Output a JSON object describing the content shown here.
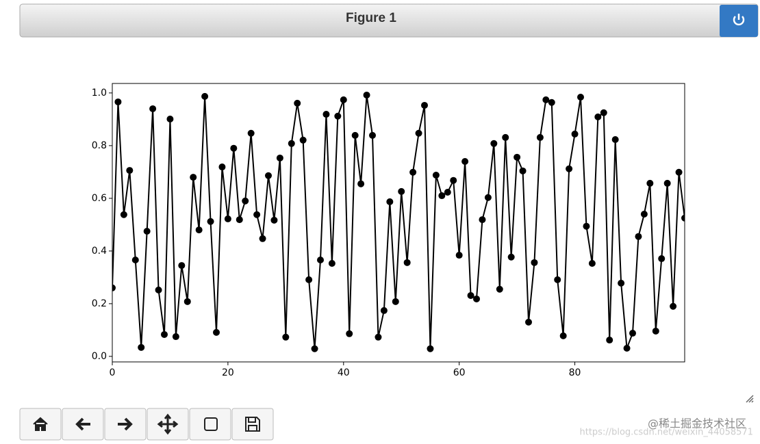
{
  "window": {
    "title": "Figure 1"
  },
  "watermark": {
    "brand": "@稀土掘金技术社区",
    "url": "https://blog.csdn.net/weixin_44058571"
  },
  "chart_data": {
    "type": "line",
    "color": "#000000",
    "marker": "o",
    "x": [
      0,
      1,
      2,
      3,
      4,
      5,
      6,
      7,
      8,
      9,
      10,
      11,
      12,
      13,
      14,
      15,
      16,
      17,
      18,
      19,
      20,
      21,
      22,
      23,
      24,
      25,
      26,
      27,
      28,
      29,
      30,
      31,
      32,
      33,
      34,
      35,
      36,
      37,
      38,
      39,
      40,
      41,
      42,
      43,
      44,
      45,
      46,
      47,
      48,
      49,
      50,
      51,
      52,
      53,
      54,
      55,
      56,
      57,
      58,
      59,
      60,
      61,
      62,
      63,
      64,
      65,
      66,
      67,
      68,
      69,
      70,
      71,
      72,
      73,
      74,
      75,
      76,
      77,
      78,
      79,
      80,
      81,
      82,
      83,
      84,
      85,
      86,
      87,
      88,
      89,
      90,
      91,
      92,
      93,
      94,
      95,
      96,
      97,
      98,
      99
    ],
    "values": [
      0.26,
      0.966,
      0.538,
      0.706,
      0.366,
      0.034,
      0.475,
      0.94,
      0.252,
      0.083,
      0.901,
      0.075,
      0.345,
      0.208,
      0.68,
      0.48,
      0.987,
      0.512,
      0.091,
      0.719,
      0.522,
      0.79,
      0.519,
      0.59,
      0.847,
      0.538,
      0.447,
      0.686,
      0.517,
      0.753,
      0.073,
      0.808,
      0.961,
      0.821,
      0.291,
      0.029,
      0.366,
      0.919,
      0.353,
      0.912,
      0.974,
      0.086,
      0.839,
      0.655,
      0.992,
      0.839,
      0.073,
      0.174,
      0.587,
      0.208,
      0.626,
      0.356,
      0.699,
      0.847,
      0.953,
      0.029,
      0.688,
      0.61,
      0.623,
      0.668,
      0.384,
      0.74,
      0.231,
      0.218,
      0.519,
      0.603,
      0.808,
      0.255,
      0.831,
      0.377,
      0.756,
      0.704,
      0.13,
      0.356,
      0.831,
      0.974,
      0.964,
      0.291,
      0.078,
      0.712,
      0.844,
      0.984,
      0.494,
      0.353,
      0.909,
      0.925,
      0.062,
      0.823,
      0.278,
      0.031,
      0.088,
      0.455,
      0.54,
      0.657,
      0.096,
      0.371,
      0.657,
      0.19,
      0.699,
      0.525
    ],
    "xlim": [
      0,
      99
    ],
    "ylim": [
      -0.021,
      1.036
    ],
    "xticks": [
      0,
      20,
      40,
      60,
      80
    ],
    "yticks": [
      {
        "value": 0,
        "label": "0.0"
      },
      0.2,
      0.4,
      0.6,
      0.8,
      {
        "value": 1,
        "label": "1.0"
      }
    ],
    "grid": false
  }
}
